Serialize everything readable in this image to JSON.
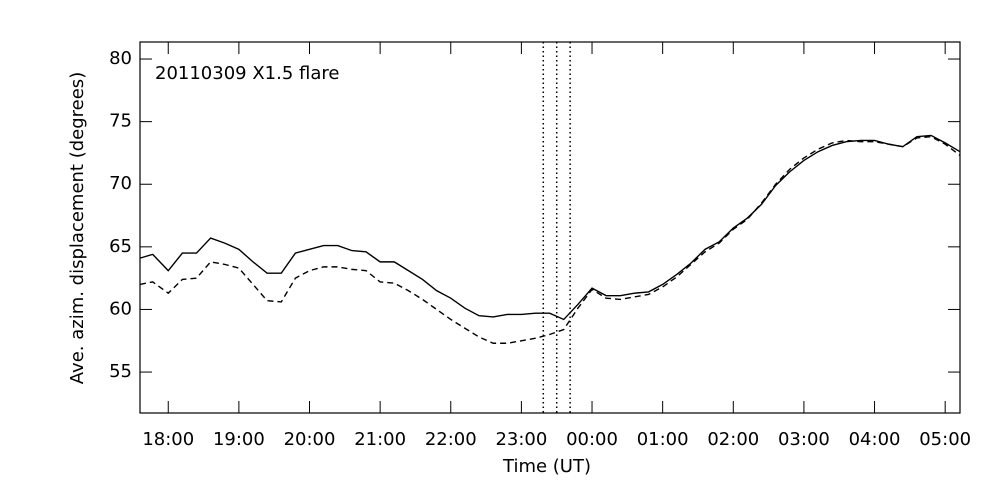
{
  "chart_data": {
    "type": "line",
    "annotation": "20110309 X1.5 flare",
    "xlabel": "Time (UT)",
    "ylabel": "Ave. azim. displacement (degrees)",
    "x": [
      17.6,
      17.78,
      18.0,
      18.2,
      18.4,
      18.6,
      18.8,
      19.0,
      19.2,
      19.4,
      19.6,
      19.8,
      20.0,
      20.2,
      20.4,
      20.6,
      20.8,
      21.0,
      21.2,
      21.4,
      21.6,
      21.8,
      22.0,
      22.2,
      22.4,
      22.6,
      22.8,
      23.0,
      23.2,
      23.4,
      23.6,
      23.8,
      24.0,
      24.2,
      24.4,
      24.6,
      24.8,
      25.0,
      25.2,
      25.4,
      25.6,
      25.8,
      26.0,
      26.2,
      26.4,
      26.6,
      26.8,
      27.0,
      27.2,
      27.4,
      27.6,
      27.8,
      28.0,
      28.2,
      28.4,
      28.6,
      28.8,
      29.0,
      29.21
    ],
    "series": [
      {
        "color": "#000000",
        "dashed": false,
        "values": [
          64.1,
          64.4,
          63.1,
          64.5,
          64.5,
          65.7,
          65.3,
          64.8,
          63.8,
          62.9,
          62.9,
          64.5,
          64.8,
          65.1,
          65.1,
          64.7,
          64.6,
          63.8,
          63.8,
          63.1,
          62.4,
          61.5,
          60.9,
          60.1,
          59.5,
          59.4,
          59.6,
          59.6,
          59.7,
          59.7,
          59.2,
          60.4,
          61.7,
          61.1,
          61.1,
          61.3,
          61.4,
          62.0,
          62.8,
          63.7,
          64.8,
          65.4,
          66.5,
          67.3,
          68.4,
          69.9,
          71.0,
          71.9,
          72.6,
          73.1,
          73.4,
          73.5,
          73.5,
          73.2,
          73.0,
          73.8,
          73.9,
          73.3,
          72.6
        ]
      },
      {
        "color": "#000000",
        "dashed": true,
        "values": [
          62.0,
          62.2,
          61.3,
          62.4,
          62.5,
          63.8,
          63.6,
          63.3,
          62.0,
          60.7,
          60.6,
          62.5,
          63.1,
          63.4,
          63.4,
          63.2,
          63.1,
          62.2,
          62.1,
          61.5,
          60.8,
          60.0,
          59.2,
          58.5,
          57.8,
          57.3,
          57.3,
          57.5,
          57.7,
          58.0,
          58.4,
          60.1,
          61.6,
          60.9,
          60.8,
          61.0,
          61.2,
          61.8,
          62.6,
          63.6,
          64.6,
          65.3,
          66.4,
          67.2,
          68.5,
          70.0,
          71.2,
          72.1,
          72.8,
          73.3,
          73.5,
          73.4,
          73.4,
          73.2,
          73.0,
          73.7,
          73.8,
          73.2,
          72.3
        ]
      }
    ],
    "vlines": [
      23.31,
      23.5,
      23.69
    ],
    "xlim": [
      17.6,
      29.21
    ],
    "xticks": [
      {
        "value": 18,
        "label": "18:00"
      },
      {
        "value": 19,
        "label": "19:00"
      },
      {
        "value": 20,
        "label": "20:00"
      },
      {
        "value": 21,
        "label": "21:00"
      },
      {
        "value": 22,
        "label": "22:00"
      },
      {
        "value": 23,
        "label": "23:00"
      },
      {
        "value": 24,
        "label": "00:00"
      },
      {
        "value": 25,
        "label": "01:00"
      },
      {
        "value": 26,
        "label": "02:00"
      },
      {
        "value": 27,
        "label": "03:00"
      },
      {
        "value": 28,
        "label": "04:00"
      },
      {
        "value": 29,
        "label": "05:00"
      }
    ],
    "ylim": [
      51.73,
      81.36
    ],
    "yticks": [
      55,
      60,
      65,
      70,
      75,
      80
    ]
  }
}
